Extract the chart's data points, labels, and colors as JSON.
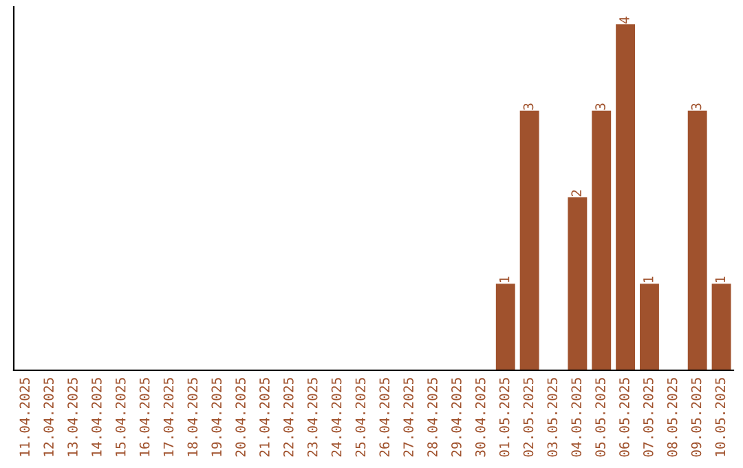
{
  "chart_data": {
    "type": "bar",
    "categories": [
      "11.04.2025",
      "12.04.2025",
      "13.04.2025",
      "14.04.2025",
      "15.04.2025",
      "16.04.2025",
      "17.04.2025",
      "18.04.2025",
      "19.04.2025",
      "20.04.2025",
      "21.04.2025",
      "22.04.2025",
      "23.04.2025",
      "24.04.2025",
      "25.04.2025",
      "26.04.2025",
      "27.04.2025",
      "28.04.2025",
      "29.04.2025",
      "30.04.2025",
      "01.05.2025",
      "02.05.2025",
      "03.05.2025",
      "04.05.2025",
      "05.05.2025",
      "06.05.2025",
      "07.05.2025",
      "08.05.2025",
      "09.05.2025",
      "10.05.2025"
    ],
    "values": [
      null,
      null,
      null,
      null,
      null,
      null,
      null,
      null,
      null,
      null,
      null,
      null,
      null,
      null,
      null,
      null,
      null,
      null,
      null,
      null,
      1,
      3,
      null,
      2,
      3,
      4,
      1,
      null,
      3,
      1
    ],
    "data_labels": true,
    "color": "#a0522d",
    "tick_labels": "x",
    "grid": false,
    "legend": false
  }
}
